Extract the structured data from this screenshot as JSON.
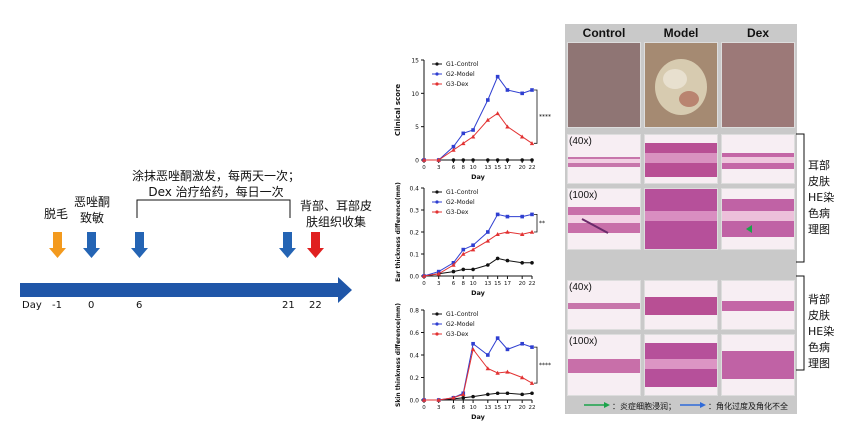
{
  "timeline": {
    "labels": {
      "depilation": "脱毛",
      "sensitization": "恶唑酮\n致敏",
      "challenge": "涂抹恶唑酮激发，每两天一次；\nDex 治疗给药，每日一次",
      "harvest": "背部、耳部皮\n肤组织收集"
    },
    "day_prefix": "Day",
    "days": [
      "-1",
      "0",
      "6",
      "21",
      "22"
    ],
    "colors": {
      "axis": "#1f56a8",
      "orange": "#f39a1e",
      "blue": "#2464b4",
      "red": "#e02020"
    }
  },
  "chart_data": [
    {
      "type": "line",
      "ylabel": "Clinical score",
      "xlabel": "Day",
      "x": [
        0,
        3,
        6,
        8,
        10,
        13,
        15,
        17,
        20,
        22
      ],
      "xticks": [
        "0",
        "3",
        "6",
        "8",
        "10",
        "13",
        "15",
        "17",
        "20",
        "22"
      ],
      "ylim": [
        0,
        15
      ],
      "yticks": [
        "0",
        "5",
        "10",
        "15"
      ],
      "legend_position": "top-left",
      "significance": "****",
      "series": [
        {
          "name": "G1-Control",
          "color": "#111111",
          "marker": "circle",
          "values": [
            0,
            0,
            0,
            0,
            0,
            0,
            0,
            0,
            0,
            0
          ]
        },
        {
          "name": "G2-Model",
          "color": "#2f3fd1",
          "marker": "square",
          "values": [
            0,
            0,
            2,
            4,
            4.5,
            9,
            12.5,
            10.5,
            10,
            10.5
          ]
        },
        {
          "name": "G3-Dex",
          "color": "#e23232",
          "marker": "triangle",
          "values": [
            0,
            0,
            1.5,
            2.5,
            3.5,
            6,
            7,
            5,
            3.5,
            2.5
          ]
        }
      ]
    },
    {
      "type": "line",
      "ylabel": "Ear thickness difference(mm)",
      "xlabel": "Day",
      "x": [
        0,
        3,
        6,
        8,
        10,
        13,
        15,
        17,
        20,
        22
      ],
      "xticks": [
        "0",
        "3",
        "6",
        "8",
        "10",
        "13",
        "15",
        "17",
        "20",
        "22"
      ],
      "ylim": [
        0,
        0.4
      ],
      "yticks": [
        "0.0",
        "0.1",
        "0.2",
        "0.3",
        "0.4"
      ],
      "legend_position": "top-left",
      "significance": "**",
      "series": [
        {
          "name": "G1-Control",
          "color": "#111111",
          "marker": "circle",
          "values": [
            0,
            0.01,
            0.02,
            0.03,
            0.03,
            0.05,
            0.08,
            0.07,
            0.06,
            0.06
          ]
        },
        {
          "name": "G2-Model",
          "color": "#2f3fd1",
          "marker": "square",
          "values": [
            0,
            0.02,
            0.06,
            0.12,
            0.14,
            0.2,
            0.28,
            0.27,
            0.27,
            0.28
          ]
        },
        {
          "name": "G3-Dex",
          "color": "#e23232",
          "marker": "triangle",
          "values": [
            0,
            0.01,
            0.05,
            0.1,
            0.12,
            0.16,
            0.19,
            0.2,
            0.19,
            0.2
          ]
        }
      ]
    },
    {
      "type": "line",
      "ylabel": "Skin thinkness difference(mm)",
      "xlabel": "Day",
      "x": [
        0,
        3,
        6,
        8,
        10,
        13,
        15,
        17,
        20,
        22
      ],
      "xticks": [
        "0",
        "3",
        "6",
        "8",
        "10",
        "13",
        "15",
        "17",
        "20",
        "22"
      ],
      "ylim": [
        0,
        0.8
      ],
      "yticks": [
        "0.0",
        "0.2",
        "0.4",
        "0.6",
        "0.8"
      ],
      "legend_position": "top-left",
      "significance": "****",
      "series": [
        {
          "name": "G1-Control",
          "color": "#111111",
          "marker": "circle",
          "values": [
            0,
            0,
            0.01,
            0.02,
            0.03,
            0.05,
            0.06,
            0.06,
            0.05,
            0.06
          ]
        },
        {
          "name": "G2-Model",
          "color": "#2f3fd1",
          "marker": "square",
          "values": [
            0,
            0,
            0.02,
            0.06,
            0.5,
            0.4,
            0.55,
            0.45,
            0.5,
            0.47
          ]
        },
        {
          "name": "G3-Dex",
          "color": "#e23232",
          "marker": "triangle",
          "values": [
            0,
            0,
            0.02,
            0.05,
            0.45,
            0.28,
            0.24,
            0.25,
            0.2,
            0.15
          ]
        }
      ]
    }
  ],
  "histology": {
    "columns": [
      "Control",
      "Model",
      "Dex"
    ],
    "magnifications": [
      "(40x)",
      "(100x)",
      "(40x)",
      "(100x)"
    ],
    "side_labels": {
      "ear": "耳部\n皮肤\nHE染\n色病\n理图",
      "back": "背部\n皮肤\nHE染\n色病\n理图"
    },
    "legend": {
      "green": "：炎症细胞浸润；",
      "blue": "：角化过度及角化不全"
    },
    "colors": {
      "he_pink": "#c05a9c",
      "he_light": "#f4dbe8",
      "green_arrow": "#1aa34a",
      "blue_arrow": "#2f6ad9"
    }
  }
}
